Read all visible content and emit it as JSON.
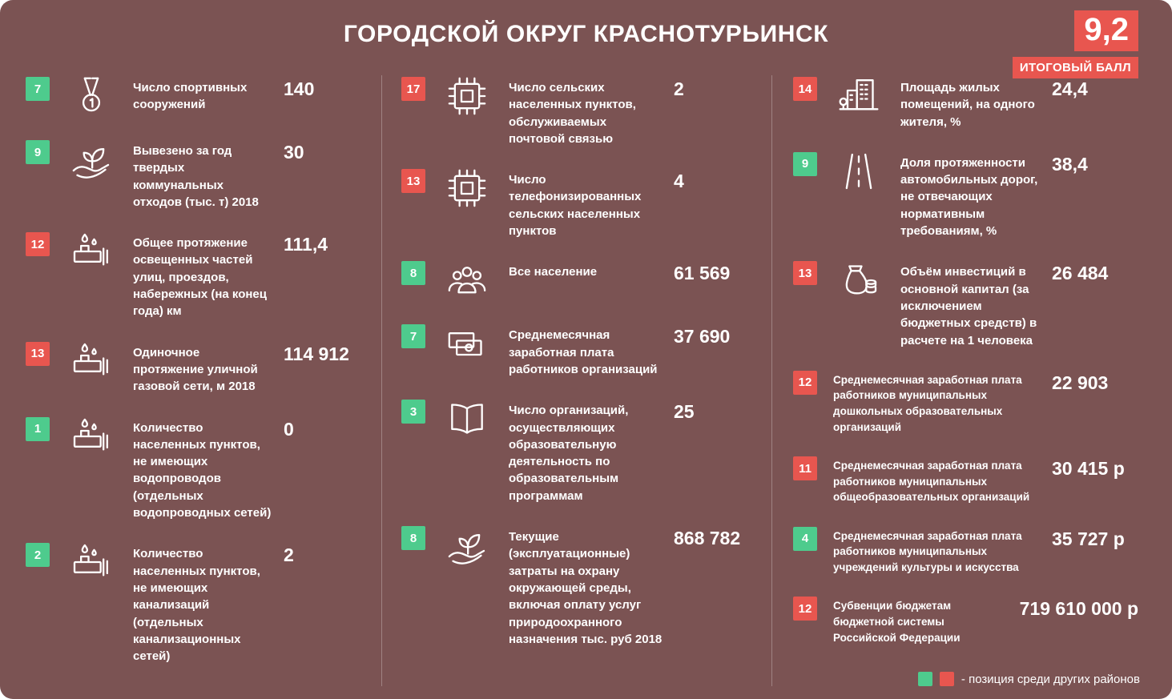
{
  "title": "ГОРОДСКОЙ ОКРУГ КРАСНОТУРЬИНСК",
  "score": {
    "value": "9,2",
    "label": "ИТОГОВЫЙ БАЛЛ"
  },
  "colors": {
    "background": "#7b5353",
    "green": "#4ecb8d",
    "red": "#e8564f",
    "text": "#ffffff"
  },
  "legend": {
    "text": "- позиция среди других районов"
  },
  "columns": [
    {
      "items": [
        {
          "rank": "7",
          "rank_color": "green",
          "icon": "medal-icon",
          "label": "Число спортивных сооружений",
          "value": "140"
        },
        {
          "rank": "9",
          "rank_color": "green",
          "icon": "sprout-hand-icon",
          "label": "Вывезено за год твердых коммунальных отходов (тыс. т) 2018",
          "value": "30"
        },
        {
          "rank": "12",
          "rank_color": "red",
          "icon": "water-pipe-icon",
          "label": "Общее протяжение освещенных частей улиц, проездов, набережных (на конец года) км",
          "value": "111,4"
        },
        {
          "rank": "13",
          "rank_color": "red",
          "icon": "water-pipe-icon",
          "label": "Одиночное протяжение уличной газовой сети, м 2018",
          "value": "114 912"
        },
        {
          "rank": "1",
          "rank_color": "green",
          "icon": "water-pipe-icon",
          "label": "Количество населенных пунктов, не имеющих водопроводов (отдельных водопроводных сетей)",
          "value": "0"
        },
        {
          "rank": "2",
          "rank_color": "green",
          "icon": "water-pipe-icon",
          "label": "Количество населенных пунктов, не имеющих канализаций (отдельных канализационных сетей)",
          "value": "2"
        }
      ]
    },
    {
      "items": [
        {
          "rank": "17",
          "rank_color": "red",
          "icon": "circuit-board-icon",
          "label": "Число сельских населенных пунктов, обслуживаемых почтовой связью",
          "value": "2"
        },
        {
          "rank": "13",
          "rank_color": "red",
          "icon": "circuit-board-icon",
          "label": "Число телефонизированных сельских населенных пунктов",
          "value": "4"
        },
        {
          "rank": "8",
          "rank_color": "green",
          "icon": "people-icon",
          "label": "Все население",
          "value": "61 569"
        },
        {
          "rank": "7",
          "rank_color": "green",
          "icon": "banknotes-icon",
          "label": "Среднемесячная заработная плата работников организаций",
          "value": "37 690"
        },
        {
          "rank": "3",
          "rank_color": "green",
          "icon": "open-book-icon",
          "label": "Число организаций, осуществляющих образовательную деятельность по образовательным программам",
          "value": "25"
        },
        {
          "rank": "8",
          "rank_color": "green",
          "icon": "sprout-hand-icon",
          "label": "Текущие (эксплуатационные) затраты на охрану окружающей среды, включая оплату услуг природоохранного назначения тыс. руб 2018",
          "value": "868 782"
        }
      ]
    },
    {
      "items": [
        {
          "rank": "14",
          "rank_color": "red",
          "icon": "buildings-icon",
          "label": "Площадь жилых помещений, на одного жителя, %",
          "value": "24,4"
        },
        {
          "rank": "9",
          "rank_color": "green",
          "icon": "road-icon",
          "label": "Доля протяженности автомобильных дорог, не отвечающих нормативным требованиям, %",
          "value": "38,4"
        },
        {
          "rank": "13",
          "rank_color": "red",
          "icon": "money-bag-icon",
          "label": "Объём инвестиций в основной капитал (за исключением бюджетных средств) в расчете на 1 человека",
          "value": "26 484"
        },
        {
          "rank": "12",
          "rank_color": "red",
          "icon": null,
          "label": "Среднемесячная заработная плата работников муниципальных дошкольных образовательных организаций",
          "value": "22 903"
        },
        {
          "rank": "11",
          "rank_color": "red",
          "icon": null,
          "label": "Среднемесячная заработная плата работников муниципальных общеобразовательных организаций",
          "value": "30 415 р"
        },
        {
          "rank": "4",
          "rank_color": "green",
          "icon": null,
          "label": "Среднемесячная заработная плата работников муниципальных учреждений культуры и искусства",
          "value": "35 727 р"
        },
        {
          "rank": "12",
          "rank_color": "red",
          "icon": null,
          "label": "Субвенции бюджетам бюджетной системы Российской Федерации",
          "value": "719 610 000 р"
        }
      ]
    }
  ]
}
